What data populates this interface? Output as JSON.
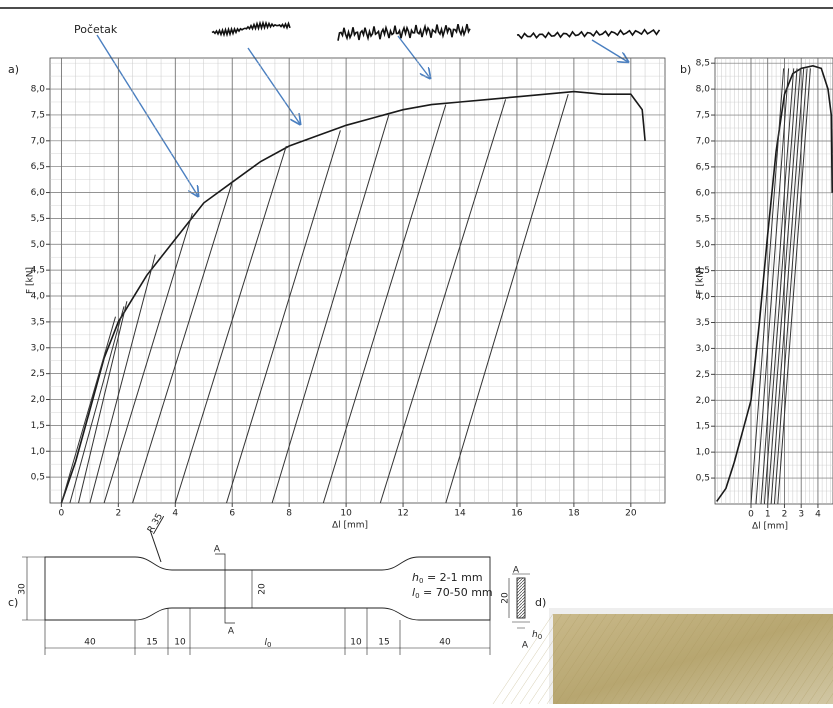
{
  "chart_data": [
    {
      "type": "line",
      "label": "a)",
      "ylabel": "F [kN]",
      "xlabel": "Δl [mm]",
      "xlim": [
        -0.4,
        21.2
      ],
      "ylim": [
        0,
        8.6
      ],
      "grid": true,
      "xticks": [
        0,
        2,
        4,
        6,
        8,
        10,
        12,
        14,
        16,
        18,
        20
      ],
      "yticks": [
        {
          "value": 0.5,
          "label": "0,5"
        },
        {
          "value": 1,
          "label": "1,0"
        },
        {
          "value": 1.5,
          "label": "1,5"
        },
        {
          "value": 2,
          "label": "2,0"
        },
        {
          "value": 2.5,
          "label": "2,5"
        },
        {
          "value": 3,
          "label": "3,0"
        },
        {
          "value": 3.5,
          "label": "3,5"
        },
        {
          "value": 4,
          "label": "4,0"
        },
        {
          "value": 4.5,
          "label": "4,5"
        },
        {
          "value": 5,
          "label": "5,0"
        },
        {
          "value": 5.5,
          "label": "5,5"
        },
        {
          "value": 6,
          "label": "6,0"
        },
        {
          "value": 6.5,
          "label": "6,5"
        },
        {
          "value": 7,
          "label": "7,0"
        },
        {
          "value": 7.5,
          "label": "7,5"
        },
        {
          "value": 8,
          "label": "8,0"
        }
      ],
      "annotations": [
        {
          "text": "Početak"
        }
      ],
      "series": [
        {
          "color": "#1a1a1a",
          "x": [
            0,
            0.5,
            1,
            1.5,
            2,
            3,
            4,
            5,
            6,
            7,
            8,
            9,
            10,
            11,
            12,
            13,
            14,
            15,
            16,
            17,
            18,
            19,
            20,
            20.4,
            20.5
          ],
          "values": [
            0,
            0.8,
            1.8,
            2.8,
            3.5,
            4.4,
            5.1,
            5.8,
            6.2,
            6.6,
            6.9,
            7.1,
            7.3,
            7.45,
            7.6,
            7.7,
            7.75,
            7.8,
            7.85,
            7.9,
            7.95,
            7.9,
            7.9,
            7.6,
            7.0
          ]
        },
        {
          "color": "#333333",
          "x": [
            0,
            1.9
          ],
          "values": [
            0,
            3.6
          ]
        },
        {
          "color": "#333333",
          "x": [
            0.3,
            2.2
          ],
          "values": [
            0,
            3.8
          ]
        },
        {
          "color": "#333333",
          "x": [
            0.6,
            2.3
          ],
          "values": [
            0,
            3.9
          ]
        },
        {
          "color": "#333333",
          "x": [
            1,
            3.3
          ],
          "values": [
            0,
            4.8
          ]
        },
        {
          "color": "#333333",
          "x": [
            1.5,
            4.6
          ],
          "values": [
            0,
            5.6
          ]
        },
        {
          "color": "#333333",
          "x": [
            2.5,
            6
          ],
          "values": [
            0,
            6.2
          ]
        },
        {
          "color": "#333333",
          "x": [
            4,
            7.9
          ],
          "values": [
            0,
            6.9
          ]
        },
        {
          "color": "#333333",
          "x": [
            5.8,
            9.8
          ],
          "values": [
            0,
            7.2
          ]
        },
        {
          "color": "#333333",
          "x": [
            7.4,
            11.5
          ],
          "values": [
            0,
            7.5
          ]
        },
        {
          "color": "#333333",
          "x": [
            9.2,
            13.5
          ],
          "values": [
            0,
            7.7
          ]
        },
        {
          "color": "#333333",
          "x": [
            11.2,
            15.6
          ],
          "values": [
            0,
            7.8
          ]
        },
        {
          "color": "#333333",
          "x": [
            13.5,
            17.8
          ],
          "values": [
            0,
            7.9
          ]
        }
      ]
    },
    {
      "type": "line",
      "label": "b)",
      "ylabel": "F [kN]",
      "xlabel": "Δl [mm]",
      "xlim": [
        -2.15,
        4.9
      ],
      "ylim": [
        0,
        8.6
      ],
      "grid": true,
      "xticks": [
        0,
        1,
        2,
        3,
        4
      ],
      "yticks": [
        {
          "value": 0.5,
          "label": "0,5"
        },
        {
          "value": 1,
          "label": "1,0"
        },
        {
          "value": 1.5,
          "label": "1,5"
        },
        {
          "value": 2,
          "label": "2,0"
        },
        {
          "value": 2.5,
          "label": "2,5"
        },
        {
          "value": 3,
          "label": "3,0"
        },
        {
          "value": 3.5,
          "label": "3,5"
        },
        {
          "value": 4,
          "label": "4,0"
        },
        {
          "value": 4.5,
          "label": "4,5"
        },
        {
          "value": 5,
          "label": "5,0"
        },
        {
          "value": 5.5,
          "label": "5,5"
        },
        {
          "value": 6,
          "label": "6,0"
        },
        {
          "value": 6.5,
          "label": "6,5"
        },
        {
          "value": 7,
          "label": "7,0"
        },
        {
          "value": 7.5,
          "label": "7,5"
        },
        {
          "value": 8,
          "label": "8,0"
        },
        {
          "value": 8.5,
          "label": "8,5"
        }
      ],
      "series": [
        {
          "color": "#1a1a1a",
          "x": [
            -2.05,
            -1.5,
            -1,
            -0.5,
            0,
            0.5,
            1,
            1.5,
            2,
            2.5,
            3,
            3.7,
            4.2,
            4.6,
            4.8,
            4.85
          ],
          "values": [
            0.05,
            0.3,
            0.8,
            1.4,
            2,
            3.5,
            5.2,
            6.8,
            7.9,
            8.3,
            8.4,
            8.45,
            8.4,
            8,
            7.5,
            6
          ]
        },
        {
          "color": "#333333",
          "x": [
            0,
            1.95
          ],
          "values": [
            0,
            8.4
          ]
        },
        {
          "color": "#333333",
          "x": [
            0.3,
            2.25
          ],
          "values": [
            0,
            8.4
          ]
        },
        {
          "color": "#333333",
          "x": [
            0.6,
            2.55
          ],
          "values": [
            0,
            8.4
          ]
        },
        {
          "color": "#333333",
          "x": [
            0.8,
            2.75
          ],
          "values": [
            0,
            8.4
          ]
        },
        {
          "color": "#333333",
          "x": [
            1,
            2.95
          ],
          "values": [
            0,
            8.4
          ]
        },
        {
          "color": "#333333",
          "x": [
            1.2,
            3.15
          ],
          "values": [
            0,
            8.4
          ]
        },
        {
          "color": "#333333",
          "x": [
            1.4,
            3.35
          ],
          "values": [
            0,
            8.4
          ]
        },
        {
          "color": "#333333",
          "x": [
            1.6,
            3.55
          ],
          "values": [
            0,
            8.4
          ]
        }
      ]
    }
  ],
  "specimen": {
    "label": "c)",
    "radius": "R 35",
    "section_top": "A",
    "section_bottom": "A",
    "height": "30",
    "gauge_width": "20",
    "bottom_dims": [
      "40",
      "15",
      "10",
      {
        "var": "l",
        "sub": "0"
      },
      "10",
      "15",
      "40"
    ],
    "notes": [
      {
        "var": "h",
        "sub": "0",
        "text": " = 2-1 mm"
      },
      {
        "var": "l",
        "sub": "0",
        "text": " = 70-50 mm"
      }
    ],
    "cross_section": {
      "top": "A",
      "width": "20",
      "thickness": {
        "var": "h",
        "sub": "0"
      },
      "bottom": "A"
    }
  },
  "photo": {
    "label": "d)"
  }
}
